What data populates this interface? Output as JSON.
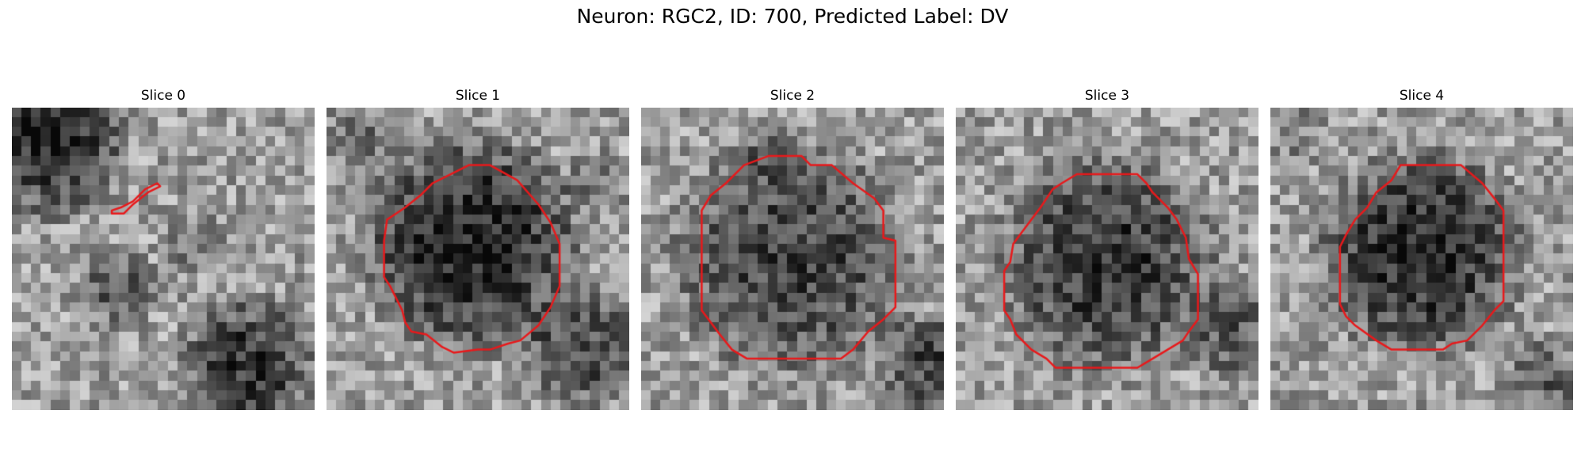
{
  "figure": {
    "title": "Neuron: RGC2, ID: 700, Predicted Label: DV",
    "contour_color": "#e8191b",
    "colormap": "grayscale",
    "slices": [
      {
        "label": "Slice 0",
        "dark_regions": [
          [
            0.12,
            0.1,
            0.24,
            0.95
          ],
          [
            0.35,
            0.6,
            0.12,
            0.55
          ],
          [
            0.78,
            0.85,
            0.2,
            0.85
          ],
          [
            0.6,
            0.45,
            0.1,
            0.35
          ]
        ],
        "contour": [
          [
            0.33,
            0.35
          ],
          [
            0.37,
            0.35
          ],
          [
            0.4,
            0.32
          ],
          [
            0.45,
            0.28
          ],
          [
            0.49,
            0.26
          ],
          [
            0.48,
            0.25
          ],
          [
            0.44,
            0.27
          ],
          [
            0.4,
            0.31
          ],
          [
            0.36,
            0.33
          ],
          [
            0.33,
            0.34
          ]
        ]
      },
      {
        "label": "Slice 1",
        "dark_regions": [
          [
            0.48,
            0.45,
            0.33,
            1.0
          ],
          [
            0.85,
            0.8,
            0.18,
            0.7
          ],
          [
            0.1,
            0.1,
            0.12,
            0.35
          ],
          [
            0.9,
            0.25,
            0.1,
            0.35
          ]
        ],
        "contour": [
          [
            0.47,
            0.19
          ],
          [
            0.54,
            0.19
          ],
          [
            0.63,
            0.24
          ],
          [
            0.7,
            0.32
          ],
          [
            0.74,
            0.38
          ],
          [
            0.77,
            0.45
          ],
          [
            0.77,
            0.59
          ],
          [
            0.74,
            0.66
          ],
          [
            0.7,
            0.72
          ],
          [
            0.64,
            0.77
          ],
          [
            0.6,
            0.78
          ],
          [
            0.54,
            0.8
          ],
          [
            0.5,
            0.8
          ],
          [
            0.42,
            0.81
          ],
          [
            0.38,
            0.79
          ],
          [
            0.33,
            0.75
          ],
          [
            0.28,
            0.74
          ],
          [
            0.26,
            0.71
          ],
          [
            0.25,
            0.67
          ],
          [
            0.23,
            0.63
          ],
          [
            0.21,
            0.59
          ],
          [
            0.19,
            0.56
          ],
          [
            0.19,
            0.44
          ],
          [
            0.2,
            0.37
          ],
          [
            0.23,
            0.35
          ],
          [
            0.26,
            0.33
          ],
          [
            0.31,
            0.29
          ],
          [
            0.35,
            0.25
          ],
          [
            0.41,
            0.22
          ]
        ]
      },
      {
        "label": "Slice 2",
        "dark_regions": [
          [
            0.5,
            0.5,
            0.36,
            0.75
          ],
          [
            0.95,
            0.85,
            0.15,
            0.7
          ],
          [
            0.4,
            0.15,
            0.1,
            0.25
          ]
        ],
        "contour": [
          [
            0.42,
            0.16
          ],
          [
            0.53,
            0.16
          ],
          [
            0.56,
            0.19
          ],
          [
            0.63,
            0.19
          ],
          [
            0.7,
            0.25
          ],
          [
            0.77,
            0.3
          ],
          [
            0.8,
            0.34
          ],
          [
            0.8,
            0.43
          ],
          [
            0.84,
            0.44
          ],
          [
            0.84,
            0.66
          ],
          [
            0.8,
            0.7
          ],
          [
            0.75,
            0.74
          ],
          [
            0.7,
            0.8
          ],
          [
            0.66,
            0.83
          ],
          [
            0.54,
            0.83
          ],
          [
            0.35,
            0.83
          ],
          [
            0.3,
            0.8
          ],
          [
            0.26,
            0.75
          ],
          [
            0.23,
            0.71
          ],
          [
            0.2,
            0.67
          ],
          [
            0.2,
            0.34
          ],
          [
            0.23,
            0.29
          ],
          [
            0.28,
            0.25
          ],
          [
            0.34,
            0.19
          ]
        ]
      },
      {
        "label": "Slice 3",
        "dark_regions": [
          [
            0.5,
            0.52,
            0.33,
            0.85
          ],
          [
            0.92,
            0.75,
            0.15,
            0.55
          ],
          [
            0.4,
            0.1,
            0.1,
            0.25
          ]
        ],
        "contour": [
          [
            0.4,
            0.22
          ],
          [
            0.6,
            0.22
          ],
          [
            0.63,
            0.25
          ],
          [
            0.65,
            0.28
          ],
          [
            0.7,
            0.33
          ],
          [
            0.73,
            0.37
          ],
          [
            0.76,
            0.43
          ],
          [
            0.77,
            0.5
          ],
          [
            0.8,
            0.55
          ],
          [
            0.8,
            0.62
          ],
          [
            0.8,
            0.7
          ],
          [
            0.77,
            0.74
          ],
          [
            0.75,
            0.77
          ],
          [
            0.7,
            0.8
          ],
          [
            0.65,
            0.83
          ],
          [
            0.6,
            0.86
          ],
          [
            0.33,
            0.86
          ],
          [
            0.3,
            0.83
          ],
          [
            0.25,
            0.8
          ],
          [
            0.2,
            0.75
          ],
          [
            0.18,
            0.7
          ],
          [
            0.16,
            0.67
          ],
          [
            0.16,
            0.54
          ],
          [
            0.18,
            0.51
          ],
          [
            0.19,
            0.45
          ],
          [
            0.22,
            0.41
          ],
          [
            0.25,
            0.37
          ],
          [
            0.28,
            0.33
          ],
          [
            0.32,
            0.27
          ],
          [
            0.35,
            0.25
          ]
        ]
      },
      {
        "label": "Slice 4",
        "dark_regions": [
          [
            0.5,
            0.48,
            0.31,
            0.95
          ],
          [
            0.9,
            0.9,
            0.12,
            0.5
          ],
          [
            0.1,
            0.1,
            0.1,
            0.25
          ]
        ],
        "contour": [
          [
            0.43,
            0.19
          ],
          [
            0.63,
            0.19
          ],
          [
            0.7,
            0.25
          ],
          [
            0.74,
            0.3
          ],
          [
            0.77,
            0.34
          ],
          [
            0.77,
            0.64
          ],
          [
            0.74,
            0.67
          ],
          [
            0.7,
            0.72
          ],
          [
            0.65,
            0.77
          ],
          [
            0.6,
            0.78
          ],
          [
            0.57,
            0.8
          ],
          [
            0.4,
            0.8
          ],
          [
            0.35,
            0.77
          ],
          [
            0.28,
            0.72
          ],
          [
            0.25,
            0.69
          ],
          [
            0.23,
            0.65
          ],
          [
            0.23,
            0.46
          ],
          [
            0.25,
            0.42
          ],
          [
            0.28,
            0.37
          ],
          [
            0.32,
            0.33
          ],
          [
            0.35,
            0.28
          ],
          [
            0.4,
            0.24
          ]
        ]
      }
    ]
  }
}
